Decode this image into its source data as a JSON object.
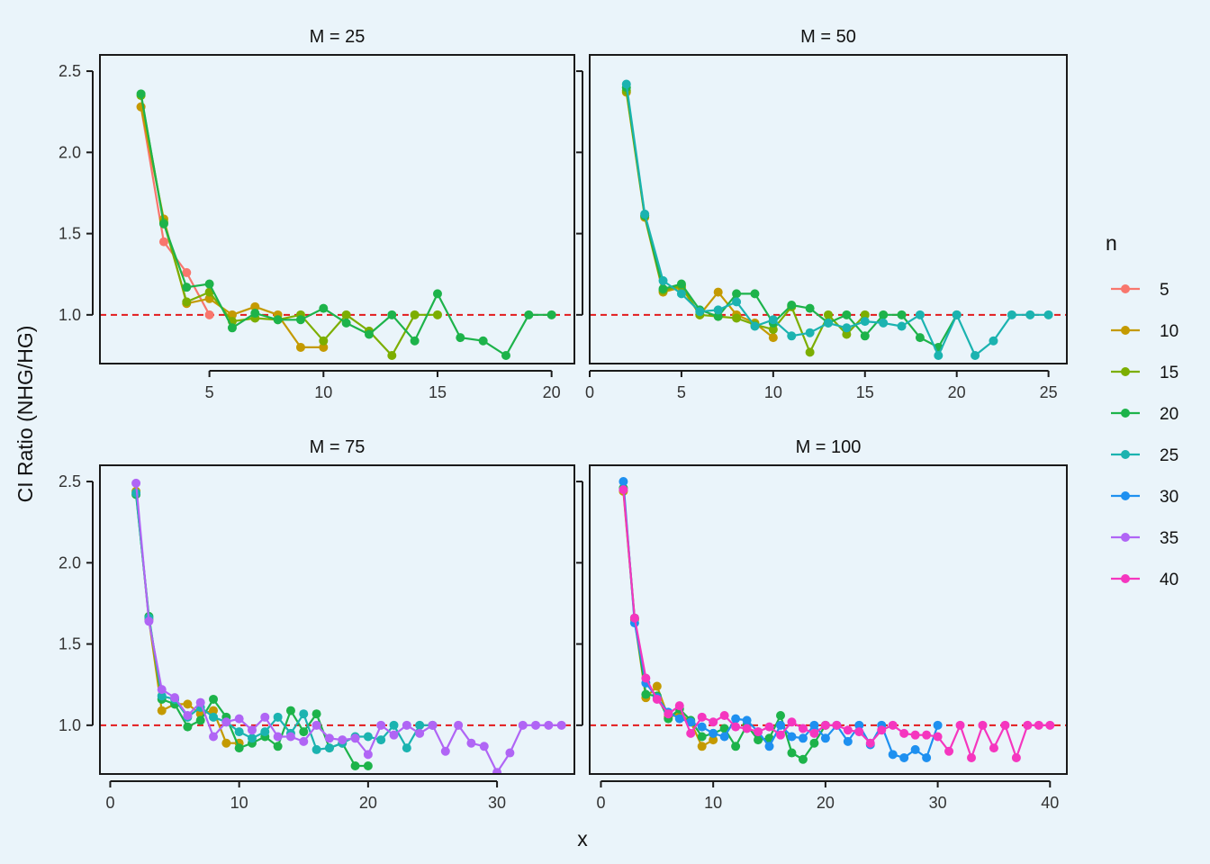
{
  "chart_data": {
    "type": "line",
    "xlabel": "x",
    "ylabel": "CI Ratio (NHG/HG)",
    "ylim": [
      0.7,
      2.6
    ],
    "yticks": [
      1.0,
      1.5,
      2.0,
      2.5
    ],
    "ytick_labels": [
      "1.0",
      "1.5",
      "2.0",
      "2.5"
    ],
    "reference_line": {
      "y": 1.0,
      "color": "#E31A1C",
      "style": "dashed"
    },
    "legend": {
      "title": "n",
      "placement": "right",
      "entries": [
        {
          "label": "5",
          "color": "#F8766D"
        },
        {
          "label": "10",
          "color": "#C49A00"
        },
        {
          "label": "15",
          "color": "#7CAE00"
        },
        {
          "label": "20",
          "color": "#1DB34A"
        },
        {
          "label": "25",
          "color": "#1BB3B0"
        },
        {
          "label": "30",
          "color": "#1E90F0"
        },
        {
          "label": "35",
          "color": "#B065F5"
        },
        {
          "label": "40",
          "color": "#F536BF"
        }
      ]
    },
    "panels": [
      {
        "title": "M = 25",
        "xlim": [
          0.2,
          21
        ],
        "xticks": [
          5,
          10,
          15,
          20
        ],
        "xtick_labels": [
          "5",
          "10",
          "15",
          "20"
        ],
        "series": [
          {
            "name": "5",
            "x": [
              2,
              3,
              4,
              5
            ],
            "y": [
              2.28,
              1.45,
              1.26,
              1.0
            ]
          },
          {
            "name": "10",
            "x": [
              2,
              3,
              4,
              5,
              6,
              7,
              8,
              9,
              10
            ],
            "y": [
              2.28,
              1.59,
              1.07,
              1.1,
              1.0,
              1.05,
              1.0,
              0.8,
              0.8
            ]
          },
          {
            "name": "15",
            "x": [
              2,
              3,
              4,
              5,
              6,
              7,
              8,
              9,
              10,
              11,
              12,
              13,
              14,
              15
            ],
            "y": [
              2.35,
              1.57,
              1.08,
              1.14,
              0.96,
              0.98,
              0.97,
              1.0,
              0.84,
              1.0,
              0.9,
              0.75,
              1.0,
              1.0
            ]
          },
          {
            "name": "20",
            "x": [
              2,
              3,
              4,
              5,
              6,
              7,
              8,
              9,
              10,
              11,
              12,
              13,
              14,
              15,
              16,
              17,
              18,
              19,
              20
            ],
            "y": [
              2.36,
              1.56,
              1.17,
              1.19,
              0.92,
              1.01,
              0.97,
              0.97,
              1.04,
              0.95,
              0.88,
              1.0,
              0.84,
              1.13,
              0.86,
              0.84,
              0.75,
              1.0,
              1.0
            ]
          }
        ]
      },
      {
        "title": "M = 50",
        "xlim": [
          0,
          26
        ],
        "xticks": [
          0,
          5,
          10,
          15,
          20,
          25
        ],
        "xtick_labels": [
          "0",
          "5",
          "10",
          "15",
          "20",
          "25"
        ],
        "series": [
          {
            "name": "10",
            "x": [
              2,
              3,
              4,
              5,
              6,
              7,
              8,
              9,
              10
            ],
            "y": [
              2.37,
              1.6,
              1.14,
              1.17,
              1.0,
              1.14,
              1.0,
              0.95,
              0.86
            ]
          },
          {
            "name": "15",
            "x": [
              2,
              3,
              4,
              5,
              6,
              7,
              8,
              9,
              10,
              11,
              12,
              13,
              14,
              15
            ],
            "y": [
              2.38,
              1.61,
              1.15,
              1.18,
              1.0,
              0.99,
              0.98,
              0.94,
              0.91,
              1.05,
              0.77,
              1.0,
              0.88,
              1.0
            ]
          },
          {
            "name": "20",
            "x": [
              2,
              3,
              4,
              5,
              6,
              7,
              8,
              9,
              10,
              11,
              12,
              13,
              14,
              15,
              16,
              17,
              18,
              19,
              20
            ],
            "y": [
              2.4,
              1.61,
              1.16,
              1.19,
              1.03,
              0.99,
              1.13,
              1.13,
              0.95,
              1.06,
              1.04,
              0.95,
              1.0,
              0.87,
              1.0,
              1.0,
              0.86,
              0.8,
              1.0
            ]
          },
          {
            "name": "25",
            "x": [
              2,
              3,
              4,
              5,
              6,
              7,
              8,
              9,
              10,
              11,
              12,
              13,
              14,
              15,
              16,
              17,
              18,
              19,
              20,
              21,
              22,
              23,
              24,
              25
            ],
            "y": [
              2.42,
              1.62,
              1.21,
              1.13,
              1.02,
              1.03,
              1.08,
              0.93,
              0.97,
              0.87,
              0.89,
              0.95,
              0.92,
              0.96,
              0.95,
              0.93,
              1.0,
              0.75,
              1.0,
              0.75,
              0.84,
              1.0,
              1.0,
              1.0
            ]
          }
        ]
      },
      {
        "title": "M = 75",
        "xlim": [
          -0.8,
          36
        ],
        "xticks": [
          0,
          10,
          20,
          30
        ],
        "xtick_labels": [
          "0",
          "10",
          "20",
          "30"
        ],
        "series": [
          {
            "name": "10",
            "x": [
              2,
              3,
              4,
              5,
              6,
              7,
              8,
              9,
              10
            ],
            "y": [
              2.44,
              1.65,
              1.09,
              1.13,
              1.13,
              1.07,
              1.09,
              0.89,
              0.89
            ]
          },
          {
            "name": "20",
            "x": [
              2,
              3,
              4,
              5,
              6,
              7,
              8,
              9,
              10,
              11,
              12,
              13,
              14,
              15,
              16,
              17,
              18,
              19,
              20
            ],
            "y": [
              2.42,
              1.67,
              1.16,
              1.13,
              0.99,
              1.03,
              1.16,
              1.05,
              0.86,
              0.89,
              0.93,
              0.87,
              1.09,
              0.96,
              1.07,
              0.86,
              0.89,
              0.75,
              0.75
            ]
          },
          {
            "name": "25",
            "x": [
              2,
              3,
              4,
              5,
              6,
              7,
              8,
              9,
              10,
              11,
              12,
              13,
              14,
              15,
              16,
              17,
              18,
              19,
              20,
              21,
              22,
              23,
              24,
              25
            ],
            "y": [
              2.43,
              1.66,
              1.18,
              1.16,
              1.05,
              1.11,
              1.05,
              1.02,
              0.96,
              0.92,
              0.96,
              1.05,
              0.95,
              1.07,
              0.85,
              0.86,
              0.89,
              0.93,
              0.93,
              0.91,
              1.0,
              0.86,
              1.0,
              1.0
            ]
          },
          {
            "name": "35",
            "x": [
              2,
              3,
              4,
              5,
              6,
              7,
              8,
              9,
              10,
              11,
              12,
              13,
              14,
              15,
              16,
              17,
              18,
              19,
              20,
              21,
              22,
              23,
              24,
              25,
              26,
              27,
              28,
              29,
              30,
              31,
              32,
              33,
              34,
              35
            ],
            "y": [
              2.49,
              1.64,
              1.22,
              1.17,
              1.06,
              1.14,
              0.93,
              1.02,
              1.04,
              0.97,
              1.05,
              0.93,
              0.93,
              0.9,
              1.0,
              0.92,
              0.91,
              0.92,
              0.82,
              1.0,
              0.94,
              1.0,
              0.95,
              1.0,
              0.84,
              1.0,
              0.89,
              0.87,
              0.71,
              0.83,
              1.0,
              1.0,
              1.0,
              1.0
            ]
          }
        ]
      },
      {
        "title": "M = 100",
        "xlim": [
          -1,
          41.5
        ],
        "xticks": [
          0,
          10,
          20,
          30,
          40
        ],
        "xtick_labels": [
          "0",
          "10",
          "20",
          "30",
          "40"
        ],
        "series": [
          {
            "name": "10",
            "x": [
              2,
              3,
              4,
              5,
              6,
              7,
              8,
              9,
              10
            ],
            "y": [
              2.44,
              1.65,
              1.17,
              1.24,
              1.05,
              1.07,
              1.02,
              0.87,
              0.91
            ]
          },
          {
            "name": "20",
            "x": [
              2,
              3,
              4,
              5,
              6,
              7,
              8,
              9,
              10,
              11,
              12,
              13,
              14,
              15,
              16,
              17,
              18,
              19,
              20
            ],
            "y": [
              2.46,
              1.66,
              1.19,
              1.18,
              1.04,
              1.1,
              1.03,
              0.93,
              0.95,
              0.98,
              0.87,
              1.0,
              0.91,
              0.92,
              1.06,
              0.83,
              0.79,
              0.89,
              1.0
            ]
          },
          {
            "name": "30",
            "x": [
              2,
              3,
              4,
              5,
              6,
              7,
              8,
              9,
              10,
              11,
              12,
              13,
              14,
              15,
              16,
              17,
              18,
              19,
              20,
              21,
              22,
              23,
              24,
              25,
              26,
              27,
              28,
              29,
              30
            ],
            "y": [
              2.5,
              1.63,
              1.26,
              1.17,
              1.08,
              1.04,
              1.02,
              0.99,
              0.95,
              0.93,
              1.04,
              1.03,
              0.96,
              0.87,
              1.0,
              0.93,
              0.92,
              1.0,
              0.92,
              1.0,
              0.9,
              1.0,
              0.88,
              1.0,
              0.82,
              0.8,
              0.85,
              0.8,
              1.0
            ]
          },
          {
            "name": "40",
            "x": [
              2,
              3,
              4,
              5,
              6,
              7,
              8,
              9,
              10,
              11,
              12,
              13,
              14,
              15,
              16,
              17,
              18,
              19,
              20,
              21,
              22,
              23,
              24,
              25,
              26,
              27,
              28,
              29,
              30,
              31,
              32,
              33,
              34,
              35,
              36,
              37,
              38,
              39,
              40
            ],
            "y": [
              2.45,
              1.66,
              1.29,
              1.16,
              1.07,
              1.12,
              0.95,
              1.05,
              1.02,
              1.06,
              0.99,
              0.98,
              0.96,
              0.99,
              0.94,
              1.02,
              0.98,
              0.95,
              1.0,
              1.0,
              0.97,
              0.96,
              0.89,
              0.97,
              1.0,
              0.95,
              0.94,
              0.94,
              0.93,
              0.84,
              1.0,
              0.8,
              1.0,
              0.86,
              1.0,
              0.8,
              1.0,
              1.0,
              1.0
            ]
          }
        ]
      }
    ]
  }
}
